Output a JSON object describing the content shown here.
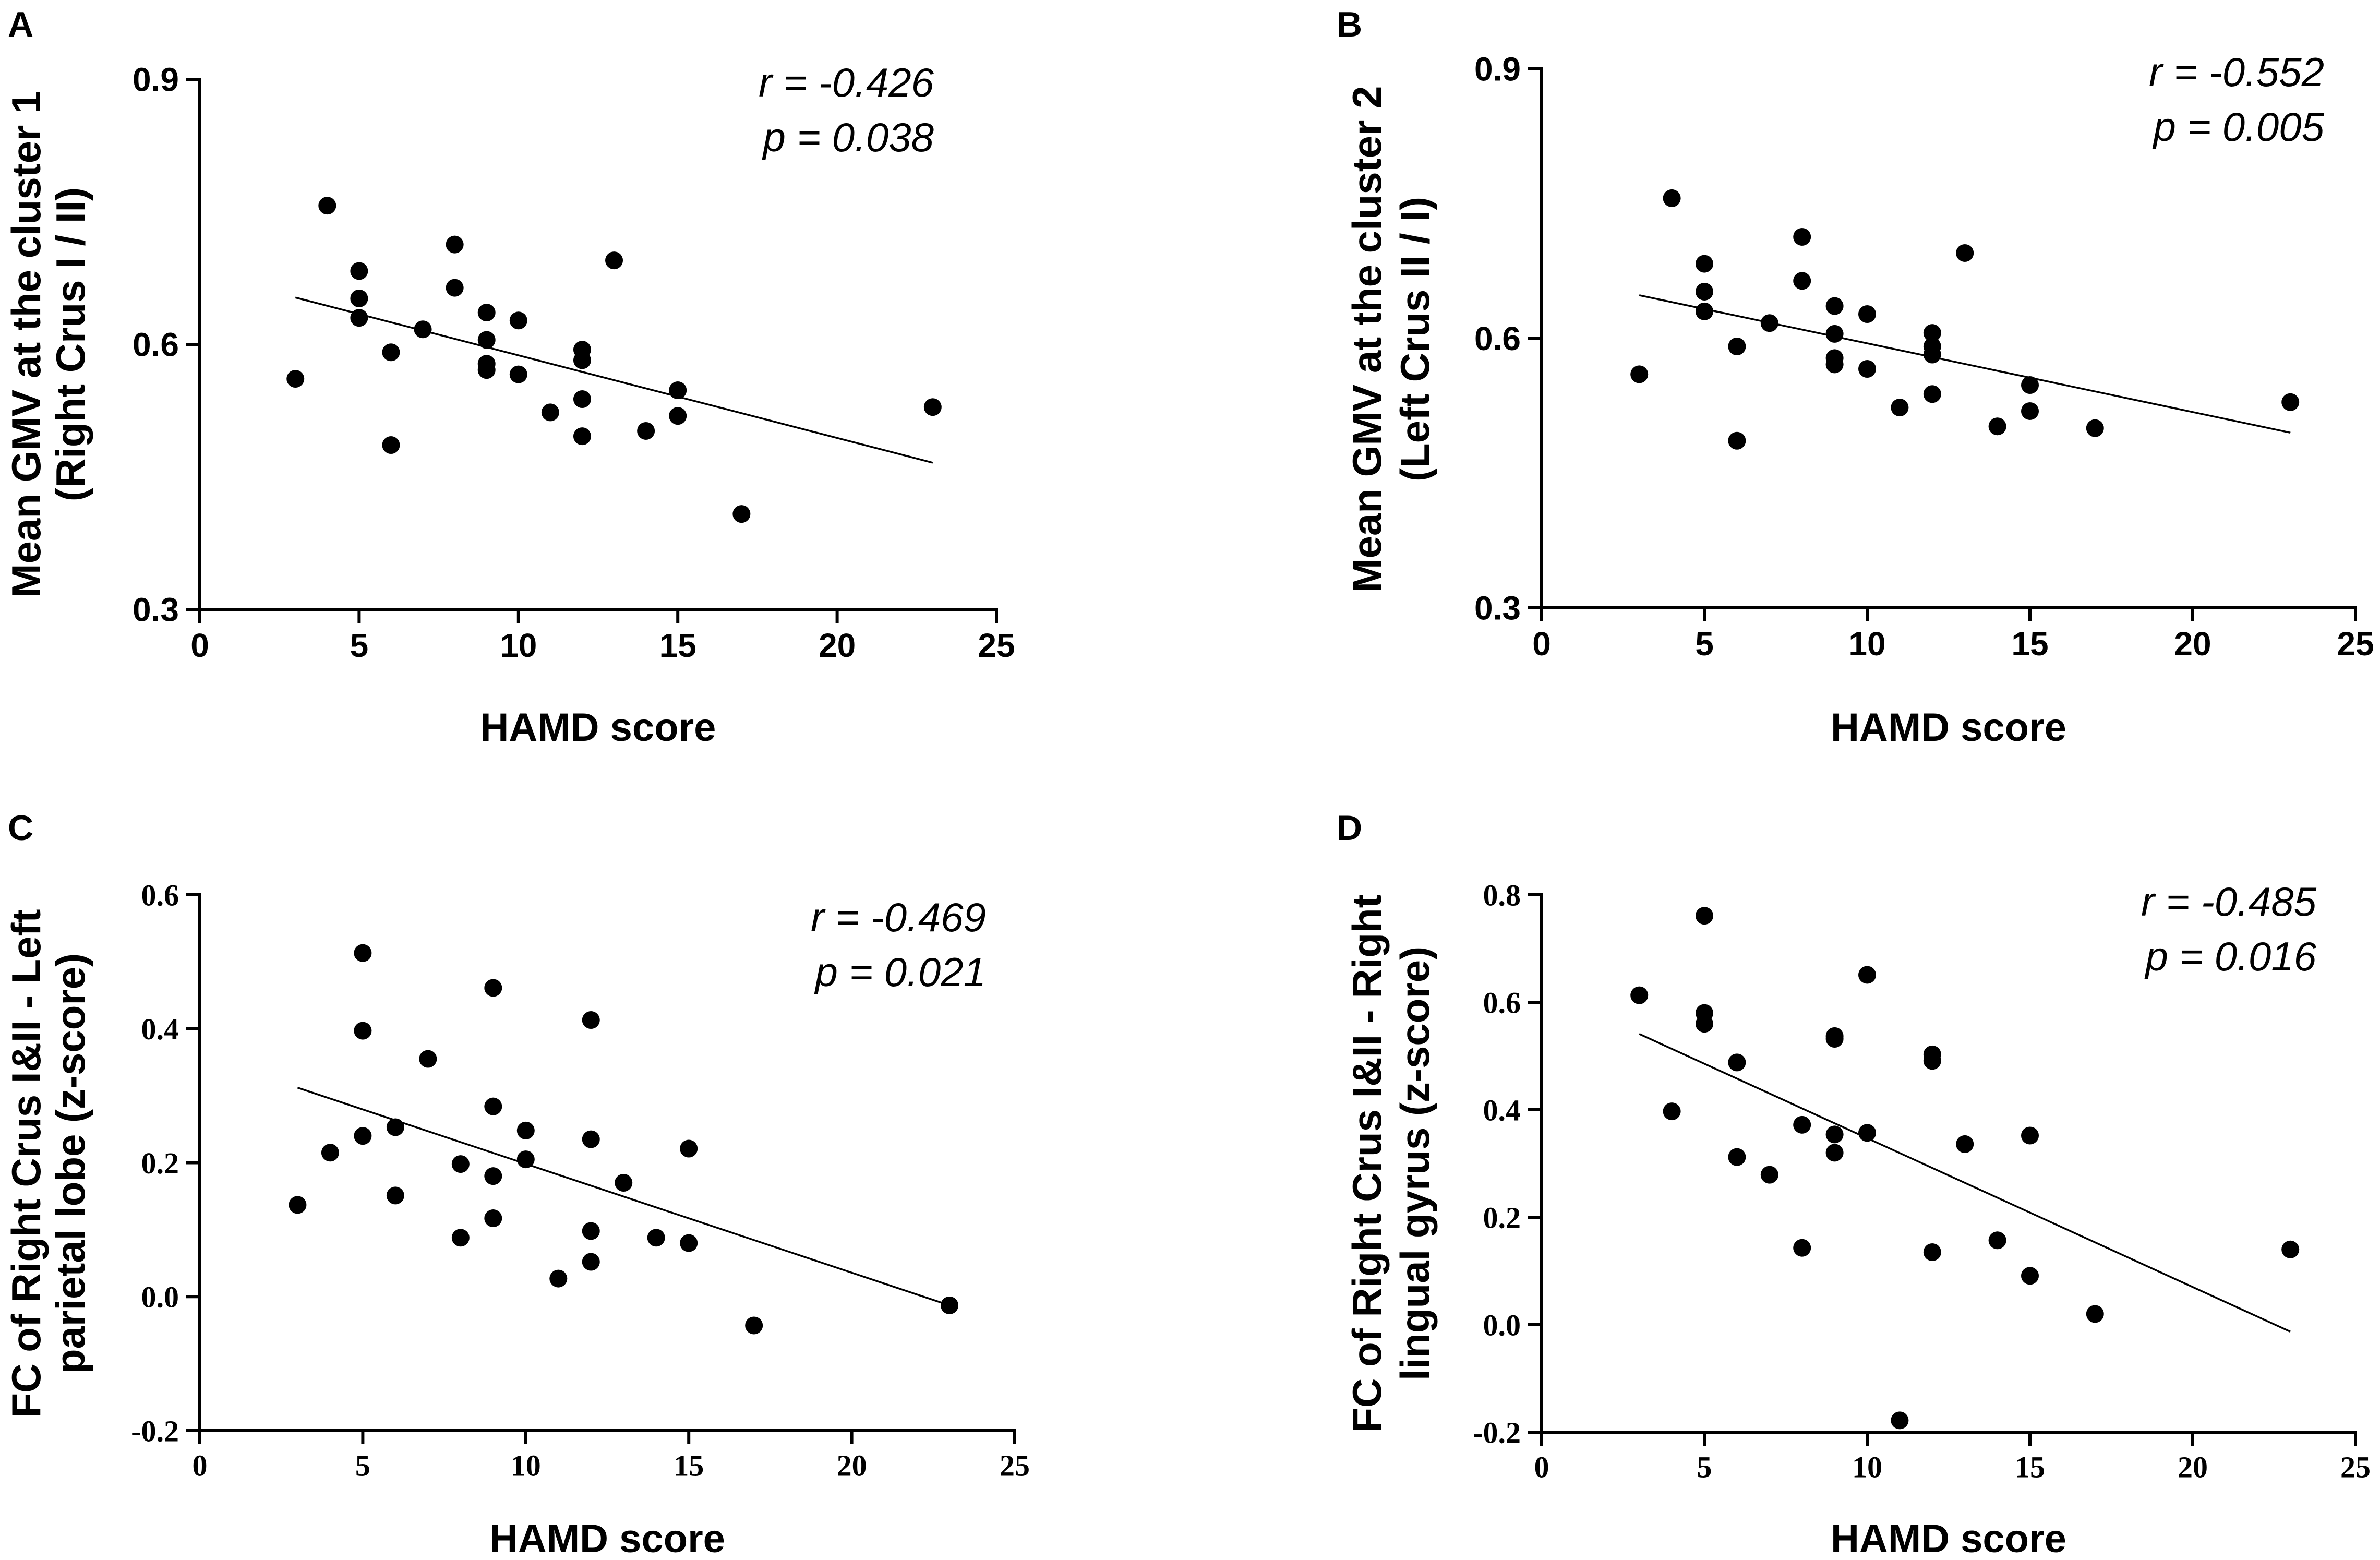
{
  "chart_data": [
    {
      "panel": "A",
      "type": "scatter",
      "ylabel": "Mean GMV at the cluster 1",
      "ylabel2": "(Right Crus I / II)",
      "xlabel": "HAMD score",
      "xlim": [
        0,
        25
      ],
      "ylim": [
        0.3,
        0.9
      ],
      "xticks": [
        0,
        5,
        10,
        15,
        20,
        25
      ],
      "yticks": [
        0.3,
        0.6,
        0.9
      ],
      "xtick_labels": [
        "0",
        "5",
        "10",
        "15",
        "20",
        "25"
      ],
      "ytick_labels": [
        "0.3",
        "0.6",
        "0.9"
      ],
      "tick_font": "sans",
      "stat_r": "r = -0.426",
      "stat_p": "p = 0.038",
      "fit": {
        "x": [
          3,
          23
        ],
        "y": [
          0.653,
          0.466
        ]
      },
      "x": [
        3,
        4,
        5,
        5,
        5,
        6,
        6,
        7,
        8,
        8,
        9,
        9,
        9,
        9,
        10,
        10,
        11,
        12,
        12,
        12,
        12,
        13,
        14,
        15,
        15,
        17,
        23
      ],
      "y": [
        0.561,
        0.757,
        0.683,
        0.652,
        0.63,
        0.591,
        0.486,
        0.617,
        0.713,
        0.664,
        0.636,
        0.605,
        0.578,
        0.571,
        0.627,
        0.566,
        0.523,
        0.594,
        0.582,
        0.538,
        0.496,
        0.695,
        0.502,
        0.548,
        0.519,
        0.408,
        0.529
      ]
    },
    {
      "panel": "B",
      "type": "scatter",
      "ylabel": "Mean GMV at the cluster 2",
      "ylabel2": "(Left Crus II / I)",
      "xlabel": "HAMD score",
      "xlim": [
        0,
        25
      ],
      "ylim": [
        0.3,
        0.9
      ],
      "xticks": [
        0,
        5,
        10,
        15,
        20,
        25
      ],
      "yticks": [
        0.3,
        0.6,
        0.9
      ],
      "xtick_labels": [
        "0",
        "5",
        "10",
        "15",
        "20",
        "25"
      ],
      "ytick_labels": [
        "0.3",
        "0.6",
        "0.9"
      ],
      "tick_font": "sans",
      "stat_r": "r = -0.552",
      "stat_p": "p = 0.005",
      "fit": {
        "x": [
          3,
          23
        ],
        "y": [
          0.648,
          0.495
        ]
      },
      "x": [
        3,
        4,
        5,
        5,
        5,
        6,
        6,
        7,
        8,
        8,
        9,
        9,
        9,
        9,
        10,
        10,
        11,
        12,
        12,
        12,
        12,
        13,
        14,
        15,
        15,
        17,
        23
      ],
      "y": [
        0.56,
        0.756,
        0.683,
        0.652,
        0.63,
        0.591,
        0.486,
        0.617,
        0.713,
        0.664,
        0.636,
        0.605,
        0.578,
        0.571,
        0.627,
        0.566,
        0.523,
        0.606,
        0.591,
        0.582,
        0.538,
        0.695,
        0.502,
        0.548,
        0.519,
        0.5,
        0.529
      ]
    },
    {
      "panel": "C",
      "type": "scatter",
      "ylabel": "FC of Right Crus I&II - Left",
      "ylabel2": "parietal lobe (z-score)",
      "xlabel": "HAMD score",
      "xlim": [
        0,
        25
      ],
      "ylim": [
        -0.2,
        0.6
      ],
      "xticks": [
        0,
        5,
        10,
        15,
        20,
        25
      ],
      "yticks": [
        -0.2,
        0.0,
        0.2,
        0.4,
        0.6
      ],
      "xtick_labels": [
        "0",
        "5",
        "10",
        "15",
        "20",
        "25"
      ],
      "ytick_labels": [
        "-0.2",
        "0.0",
        "0.2",
        "0.4",
        "0.6"
      ],
      "tick_font": "serif",
      "stat_r": "r = -0.469",
      "stat_p": "p = 0.021",
      "fit": {
        "x": [
          3,
          23
        ],
        "y": [
          0.312,
          -0.013
        ]
      },
      "x": [
        3,
        4,
        5,
        5,
        5,
        6,
        6,
        7,
        8,
        8,
        9,
        9,
        9,
        9,
        10,
        10,
        11,
        12,
        12,
        12,
        12,
        13,
        14,
        15,
        15,
        17,
        23
      ],
      "y": [
        0.137,
        0.215,
        0.513,
        0.397,
        0.24,
        0.253,
        0.151,
        0.355,
        0.198,
        0.088,
        0.461,
        0.284,
        0.18,
        0.117,
        0.248,
        0.205,
        0.027,
        0.413,
        0.235,
        0.098,
        0.052,
        0.17,
        0.088,
        0.221,
        0.08,
        -0.043,
        -0.013
      ]
    },
    {
      "panel": "D",
      "type": "scatter",
      "ylabel": "FC of Right Crus I&II - Right",
      "ylabel2": "lingual gyrus (z-score)",
      "xlabel": "HAMD score",
      "xlim": [
        0,
        25
      ],
      "ylim": [
        -0.2,
        0.8
      ],
      "xticks": [
        0,
        5,
        10,
        15,
        20,
        25
      ],
      "yticks": [
        -0.2,
        0.0,
        0.2,
        0.4,
        0.6,
        0.8
      ],
      "xtick_labels": [
        "0",
        "5",
        "10",
        "15",
        "20",
        "25"
      ],
      "ytick_labels": [
        "-0.2",
        "0.0",
        "0.2",
        "0.4",
        "0.6",
        "0.8"
      ],
      "tick_font": "serif",
      "stat_r": "r = -0.485",
      "stat_p": "p = 0.016",
      "fit": {
        "x": [
          3,
          23
        ],
        "y": [
          0.541,
          -0.013
        ]
      },
      "x": [
        3,
        4,
        5,
        5,
        5,
        6,
        6,
        7,
        8,
        8,
        9,
        9,
        9,
        9,
        10,
        10,
        11,
        12,
        12,
        12,
        13,
        14,
        15,
        15,
        17,
        23
      ],
      "y": [
        0.613,
        0.397,
        0.761,
        0.58,
        0.56,
        0.488,
        0.312,
        0.279,
        0.372,
        0.143,
        0.537,
        0.532,
        0.354,
        0.32,
        0.651,
        0.357,
        -0.178,
        0.503,
        0.491,
        0.135,
        0.336,
        0.157,
        0.352,
        0.091,
        0.02,
        0.14
      ]
    }
  ]
}
